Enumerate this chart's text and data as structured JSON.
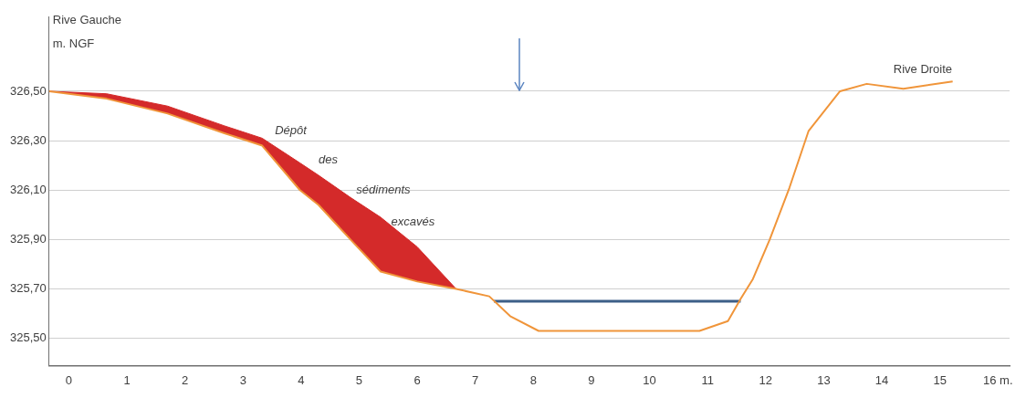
{
  "chart_data": {
    "type": "line",
    "ylabel": "m. NGF",
    "annotations": [
      "Rive Gauche",
      "Rive Droite",
      "Dépôt des sédiments excavés"
    ],
    "xlim": [
      -0.34,
      16.2
    ],
    "ylim": [
      325.39,
      326.8
    ],
    "xticks": [
      0,
      1,
      2,
      3,
      4,
      5,
      6,
      7,
      8,
      9,
      10,
      11,
      12,
      13,
      14,
      15,
      {
        "value": 16,
        "label": "16 m."
      }
    ],
    "yticks": [
      {
        "value": 325.5,
        "label": "325,50"
      },
      {
        "value": 325.7,
        "label": "325,70"
      },
      {
        "value": 325.9,
        "label": "325,90"
      },
      {
        "value": 326.1,
        "label": "326,10"
      },
      {
        "value": 326.3,
        "label": "326,30"
      },
      {
        "value": 326.5,
        "label": "326,50"
      }
    ],
    "grid": "y",
    "legend": false,
    "marker": "none",
    "series": [
      {
        "color": "#f0953a",
        "x": [
          -0.34,
          0.65,
          1.7,
          2.68,
          3.33,
          3.98,
          4.3,
          4.85,
          5.37,
          6.0,
          6.67,
          7.24,
          7.6,
          8.09,
          10.86,
          11.35,
          11.57,
          11.78,
          12.07,
          12.41,
          12.74,
          13.28,
          13.74,
          14.37,
          15.22
        ],
        "values": [
          326.5,
          326.47,
          326.41,
          326.33,
          326.28,
          326.1,
          326.04,
          325.9,
          325.77,
          325.73,
          325.7,
          325.67,
          325.59,
          325.53,
          325.53,
          325.57,
          325.66,
          325.74,
          325.9,
          326.11,
          326.34,
          326.5,
          326.53,
          326.51,
          326.54
        ]
      },
      {
        "type": "area",
        "color": "#d42a2a",
        "x": [
          -0.34,
          0.65,
          1.7,
          2.68,
          3.33,
          3.98,
          4.3,
          4.85,
          5.37,
          6.0,
          6.67
        ],
        "values": [
          326.5,
          326.49,
          326.44,
          326.36,
          326.31,
          326.21,
          326.16,
          326.07,
          325.99,
          325.87,
          325.7
        ]
      },
      {
        "type": "line",
        "color": "#3d5f88",
        "x": [
          7.32,
          11.57
        ],
        "values": [
          325.65,
          325.65
        ]
      }
    ]
  }
}
